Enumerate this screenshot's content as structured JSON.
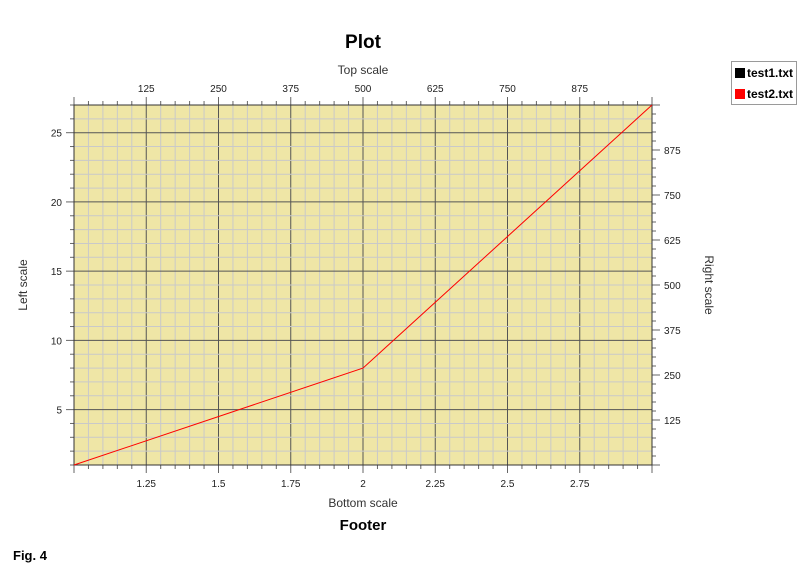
{
  "chart_data": {
    "type": "line",
    "title": "Plot",
    "footer": "Footer",
    "bottom_axis": {
      "label": "Bottom scale",
      "range": [
        1,
        3
      ],
      "ticks": [
        "1.25",
        "1.5",
        "1.75",
        "2",
        "2.25",
        "2.5",
        "2.75"
      ]
    },
    "left_axis": {
      "label": "Left scale",
      "range": [
        1,
        27
      ],
      "ticks": [
        "5",
        "10",
        "15",
        "20",
        "25"
      ]
    },
    "top_axis": {
      "label": "Top scale",
      "range": [
        0,
        1000
      ],
      "ticks": [
        "125",
        "250",
        "375",
        "500",
        "625",
        "750",
        "875"
      ]
    },
    "right_axis": {
      "label": "Right scale",
      "range": [
        0,
        1000
      ],
      "ticks": [
        "125",
        "250",
        "375",
        "500",
        "625",
        "750",
        "875"
      ]
    },
    "grid": true,
    "plot_background": "#efe6a6",
    "legend_position": "top-right",
    "series": [
      {
        "name": "test1.txt",
        "color": "#000000",
        "x": [],
        "y": []
      },
      {
        "name": "test2.txt",
        "color": "#ff0000",
        "x": [
          1,
          2,
          3
        ],
        "y": [
          1,
          8,
          27
        ]
      }
    ]
  },
  "figure_label": "Fig. 4"
}
